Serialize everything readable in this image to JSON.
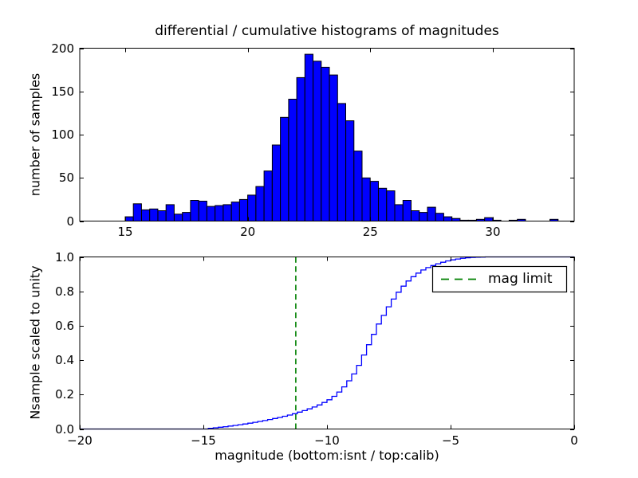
{
  "figure": {
    "background": "#ffffff"
  },
  "chart_data": [
    {
      "type": "bar",
      "role": "differential histogram",
      "title": "differential / cumulative histograms of magnitudes",
      "xlabel": "",
      "ylabel": "number of samples",
      "xlim": [
        13.145,
        33.32
      ],
      "ylim": [
        0,
        200
      ],
      "grid": false,
      "bar_color": "#0000ff",
      "bar_edge_color": "#000000",
      "bin_start": 15.0,
      "bin_width": 0.3333,
      "values": [
        5,
        20,
        13,
        14,
        12,
        19,
        8,
        10,
        24,
        23,
        17,
        18,
        19,
        22,
        25,
        30,
        40,
        58,
        88,
        120,
        141,
        166,
        193,
        185,
        178,
        169,
        136,
        116,
        81,
        50,
        46,
        38,
        35,
        19,
        24,
        12,
        10,
        16,
        9,
        5,
        3,
        1,
        1,
        2,
        4,
        1,
        0,
        1,
        2,
        0,
        0,
        0,
        2,
        0
      ],
      "xticks": {
        "values": [
          15,
          20,
          25,
          30
        ],
        "labels": [
          "15",
          "20",
          "25",
          "30"
        ]
      },
      "yticks": {
        "values": [
          0,
          50,
          100,
          150,
          200
        ],
        "labels": [
          "0",
          "50",
          "100",
          "150",
          "200"
        ]
      }
    },
    {
      "type": "line",
      "role": "cumulative histogram (step curve)",
      "title": "",
      "xlabel": "magnitude (bottom:isnt / top:calib)",
      "ylabel": "Nsample scaled to unity",
      "xlim": [
        -20,
        0
      ],
      "ylim": [
        0.0,
        1.0
      ],
      "grid": false,
      "line_color": "#0000ff",
      "start_point": [
        -20,
        0.0
      ],
      "end_x": 0,
      "steps": [
        [
          -14.8,
          0.004
        ],
        [
          -14.6,
          0.007
        ],
        [
          -14.4,
          0.01
        ],
        [
          -14.2,
          0.013
        ],
        [
          -14.0,
          0.017
        ],
        [
          -13.8,
          0.021
        ],
        [
          -13.6,
          0.025
        ],
        [
          -13.4,
          0.029
        ],
        [
          -13.2,
          0.034
        ],
        [
          -13.0,
          0.039
        ],
        [
          -12.8,
          0.044
        ],
        [
          -12.6,
          0.049
        ],
        [
          -12.4,
          0.055
        ],
        [
          -12.2,
          0.061
        ],
        [
          -12.0,
          0.067
        ],
        [
          -11.8,
          0.074
        ],
        [
          -11.6,
          0.081
        ],
        [
          -11.4,
          0.089
        ],
        [
          -11.2,
          0.098
        ],
        [
          -11.0,
          0.107
        ],
        [
          -10.8,
          0.117
        ],
        [
          -10.6,
          0.128
        ],
        [
          -10.4,
          0.14
        ],
        [
          -10.2,
          0.154
        ],
        [
          -10.0,
          0.17
        ],
        [
          -9.8,
          0.19
        ],
        [
          -9.6,
          0.215
        ],
        [
          -9.4,
          0.245
        ],
        [
          -9.2,
          0.28
        ],
        [
          -9.0,
          0.32
        ],
        [
          -8.8,
          0.37
        ],
        [
          -8.6,
          0.43
        ],
        [
          -8.4,
          0.49
        ],
        [
          -8.2,
          0.55
        ],
        [
          -8.0,
          0.61
        ],
        [
          -7.8,
          0.66
        ],
        [
          -7.6,
          0.71
        ],
        [
          -7.4,
          0.755
        ],
        [
          -7.2,
          0.795
        ],
        [
          -7.0,
          0.83
        ],
        [
          -6.8,
          0.86
        ],
        [
          -6.6,
          0.885
        ],
        [
          -6.4,
          0.906
        ],
        [
          -6.2,
          0.924
        ],
        [
          -6.0,
          0.938
        ],
        [
          -5.8,
          0.95
        ],
        [
          -5.6,
          0.96
        ],
        [
          -5.4,
          0.969
        ],
        [
          -5.2,
          0.977
        ],
        [
          -5.0,
          0.983
        ],
        [
          -4.8,
          0.988
        ],
        [
          -4.6,
          0.992
        ],
        [
          -4.4,
          0.995
        ],
        [
          -4.2,
          0.997
        ],
        [
          -4.0,
          0.998
        ],
        [
          -3.8,
          0.999
        ],
        [
          -3.6,
          1.0
        ]
      ],
      "mag_limit": {
        "x": -11.26,
        "color": "#008000",
        "style": "dashed"
      },
      "legend": {
        "position": "upper right",
        "entries": [
          {
            "label": "mag limit",
            "color": "#008000",
            "style": "dashed"
          }
        ]
      },
      "xticks": {
        "values": [
          -20,
          -15,
          -10,
          -5,
          0
        ],
        "labels": [
          "−20",
          "−15",
          "−10",
          "−5",
          "0"
        ]
      },
      "yticks": {
        "values": [
          0.0,
          0.2,
          0.4,
          0.6,
          0.8,
          1.0
        ],
        "labels": [
          "0.0",
          "0.2",
          "0.4",
          "0.6",
          "0.8",
          "1.0"
        ]
      }
    }
  ]
}
